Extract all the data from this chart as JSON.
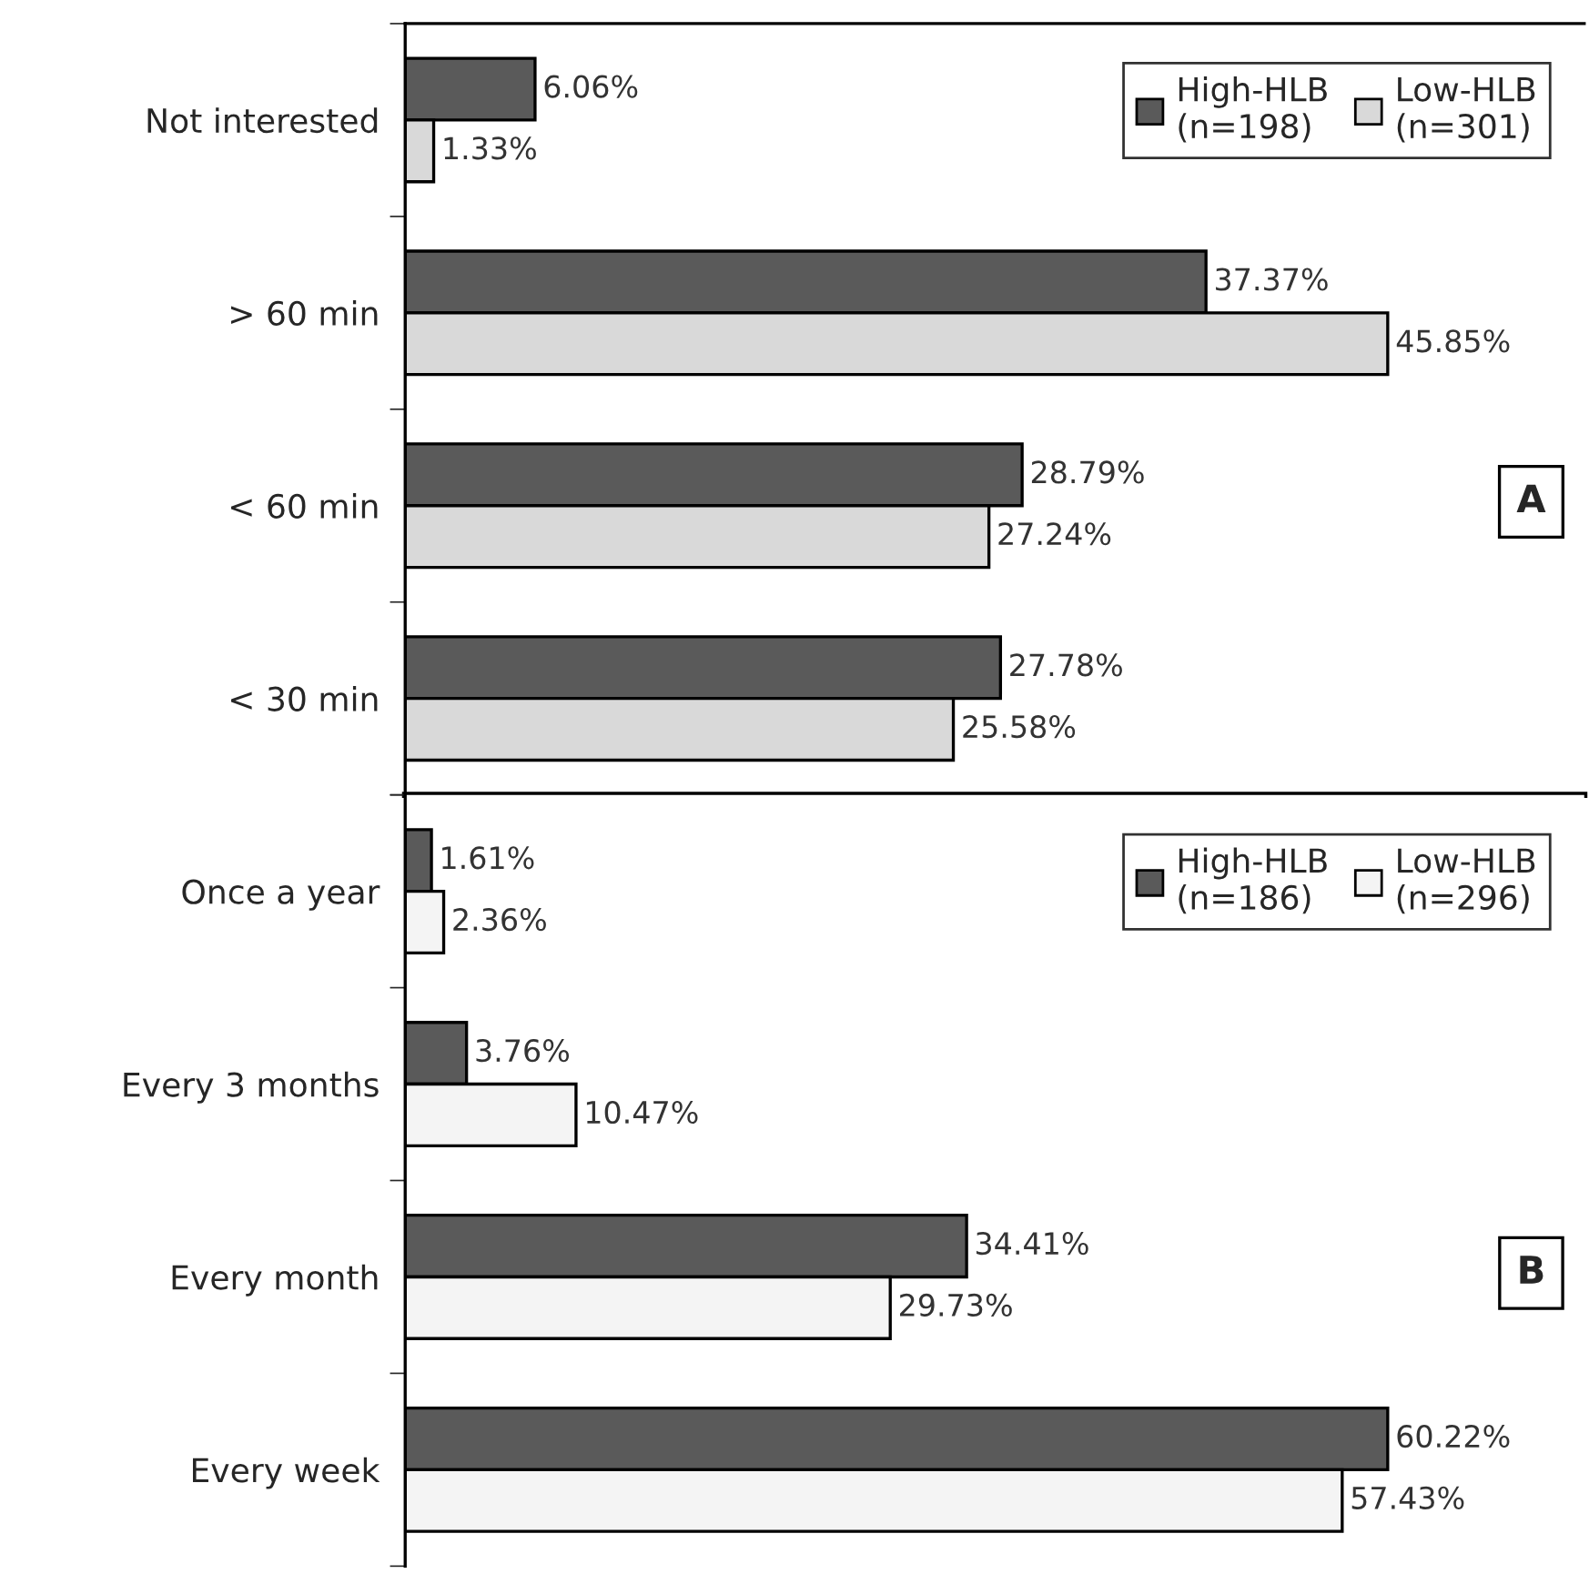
{
  "chart_data": [
    {
      "type": "bar",
      "orientation": "horizontal",
      "legend": "top right",
      "grid": false,
      "categories": [
        "Not interested",
        "> 60 min",
        "< 60 min",
        "< 30 min"
      ],
      "series": [
        {
          "name": "High-HLB\n(n=198)",
          "color": "#5a5a5a",
          "values": [
            6.06,
            37.37,
            28.79,
            27.78
          ],
          "value_labels": [
            "6.06%",
            "37.37%",
            "28.79%",
            "27.78%"
          ]
        },
        {
          "name": "Low-HLB\n(n=301)",
          "color": "#d9d9d9",
          "values": [
            1.33,
            45.85,
            27.24,
            25.58
          ],
          "value_labels": [
            "1.33%",
            "45.85%",
            "27.24%",
            "25.58%"
          ]
        }
      ],
      "annotations": [
        "A"
      ]
    },
    {
      "type": "bar",
      "orientation": "horizontal",
      "legend": "top right",
      "grid": false,
      "categories": [
        "Once a year",
        "Every 3 months",
        "Every month",
        "Every week"
      ],
      "series": [
        {
          "name": "High-HLB\n(n=186)",
          "color": "#5a5a5a",
          "values": [
            1.61,
            3.76,
            34.41,
            60.22
          ],
          "value_labels": [
            "1.61%",
            "3.76%",
            "34.41%",
            "60.22%"
          ]
        },
        {
          "name": "Low-HLB\n(n=296)",
          "color": "#f4f4f4",
          "values": [
            2.36,
            10.47,
            29.73,
            57.43
          ],
          "value_labels": [
            "2.36%",
            "10.47%",
            "29.73%",
            "57.43%"
          ]
        }
      ],
      "annotations": [
        "B"
      ]
    }
  ]
}
